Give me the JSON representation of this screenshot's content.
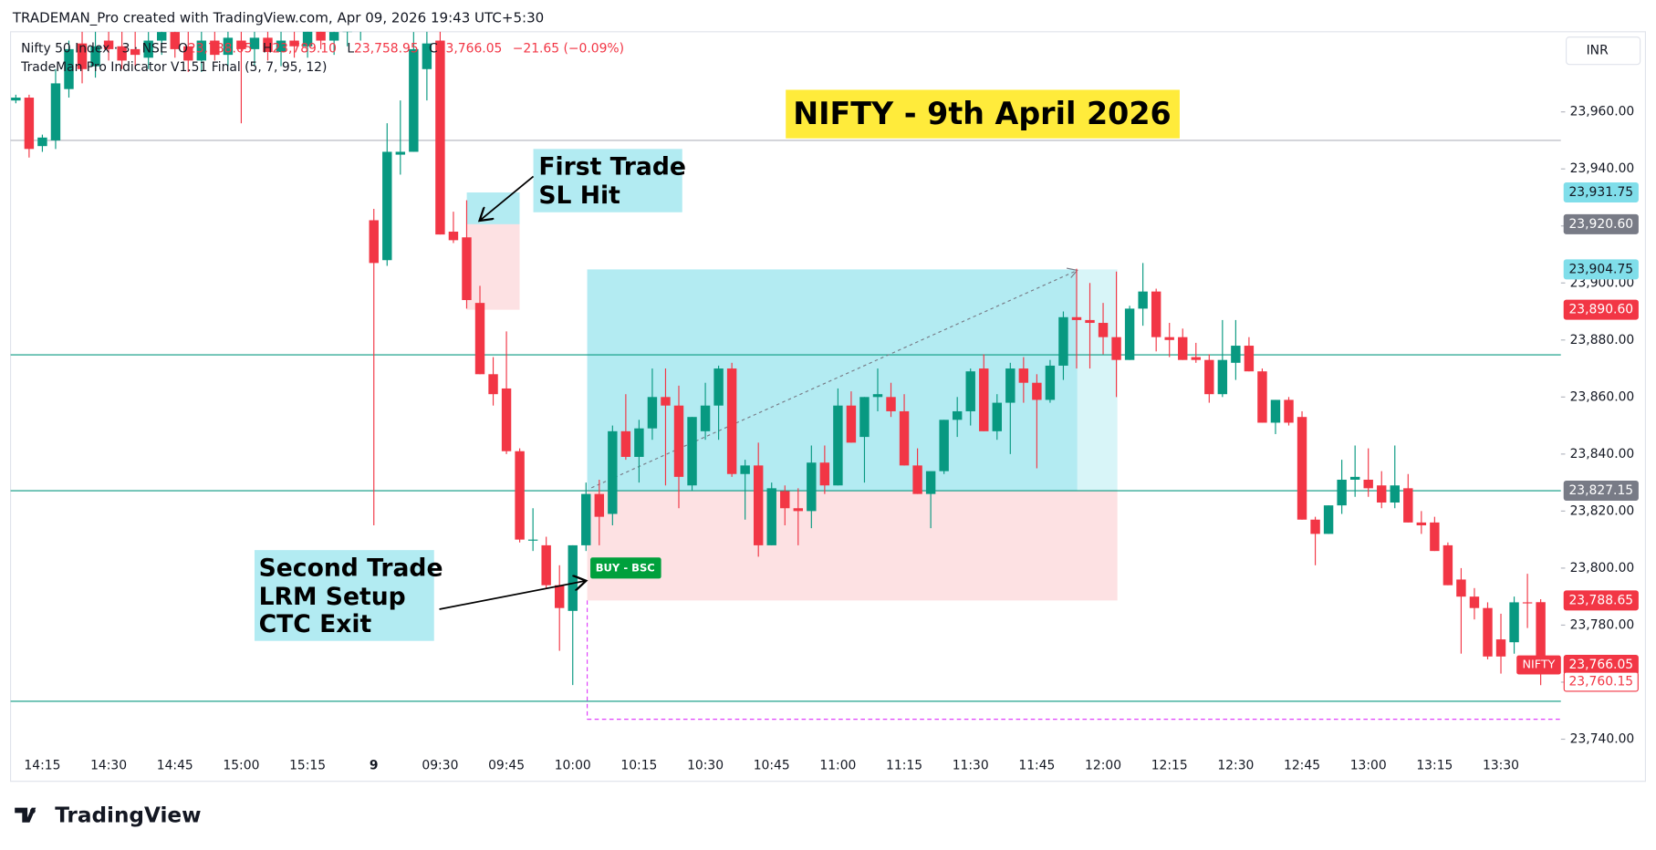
{
  "header": "TRADEMAN_Pro created with TradingView.com, Apr 09, 2026 19:43 UTC+5:30",
  "brand": "TradingView",
  "currency": "INR",
  "chart_data": {
    "type": "candlestick",
    "title": "NIFTY - 9th April 2026",
    "symbol": "Nifty 50 Index · 3 · NSE",
    "ohlc_legend": [
      {
        "key": "O",
        "label": "23,788.05"
      },
      {
        "key": "H",
        "label": "23,789.10"
      },
      {
        "key": "L",
        "label": "23,758.95"
      },
      {
        "key": "C",
        "label": "23,766.05"
      }
    ],
    "change_label": "−21.65 (−0.09%)",
    "indicator": "TradeMan Pro Indicator V1.51 Final (5, 7, 95, 12)",
    "up_color": "#089981",
    "down_color": "#f23645",
    "grid": false,
    "categories": [
      null,
      null,
      "14:15",
      null,
      null,
      null,
      null,
      "14:30",
      null,
      null,
      null,
      null,
      "14:45",
      null,
      null,
      null,
      null,
      "15:00",
      null,
      null,
      null,
      null,
      "15:15",
      null,
      null,
      null,
      null,
      "9",
      null,
      null,
      null,
      null,
      "09:30",
      null,
      null,
      null,
      null,
      "09:45",
      null,
      null,
      null,
      null,
      "10:00",
      null,
      null,
      null,
      null,
      "10:15",
      null,
      null,
      null,
      null,
      "10:30",
      null,
      null,
      null,
      null,
      "10:45",
      null,
      null,
      null,
      null,
      "11:00",
      null,
      null,
      null,
      null,
      "11:15",
      null,
      null,
      null,
      null,
      "11:30",
      null,
      null,
      null,
      null,
      "11:45",
      null,
      null,
      null,
      null,
      "12:00",
      null,
      null,
      null,
      null,
      "12:15",
      null,
      null,
      null,
      null,
      "12:30",
      null,
      null,
      null,
      null,
      "12:45",
      null,
      null,
      null,
      null,
      "13:00",
      null,
      null,
      null,
      null,
      "13:15",
      null,
      null,
      null,
      null,
      "13:30",
      null,
      null,
      null
    ],
    "open": [
      23964,
      23965,
      23948,
      23950,
      23968,
      23984,
      23976,
      23985,
      23983,
      23982,
      23979,
      23985,
      23988,
      23983,
      23978,
      23985,
      23980,
      23985,
      23982,
      23986,
      23981,
      23985,
      23983,
      23989,
      23985,
      23988,
      23991,
      23922,
      23908,
      23945,
      23946,
      23975,
      23985,
      23918,
      23916,
      23893,
      23868,
      23863,
      23841,
      23810,
      23808,
      23794,
      23785,
      23808,
      23826,
      23819,
      23848,
      23839,
      23849,
      23860,
      23857,
      23829,
      23848,
      23857,
      23870,
      23833,
      23836,
      23808,
      23827,
      23821,
      23820,
      23837,
      23829,
      23857,
      23846,
      23860,
      23860,
      23855,
      23836,
      23826,
      23834,
      23852,
      23855,
      23870,
      23848,
      23858,
      23870,
      23865,
      23859,
      23871,
      23888,
      23887,
      23886,
      23881,
      23873,
      23891,
      23897,
      23881,
      23881,
      23874,
      23873,
      23861,
      23872,
      23878,
      23869,
      23851,
      23859,
      23853,
      23817,
      23812,
      23822,
      23831,
      23831,
      23829,
      23823,
      23828,
      23816,
      23816,
      23808,
      23796,
      23790,
      23786,
      23775,
      23774,
      23788,
      23788.05
    ],
    "high": [
      23966,
      23966,
      23952,
      23975,
      23985,
      23990,
      23990,
      23993,
      23990,
      23992,
      23988,
      23995,
      23996,
      23990,
      23989,
      23992,
      23990,
      23995,
      23992,
      23995,
      23990,
      23994,
      23995,
      23997,
      23994,
      23996,
      23998,
      23926,
      23956,
      23964,
      23988,
      23990,
      23990,
      23925,
      23929,
      23899,
      23874,
      23883,
      23842,
      23821,
      23811,
      23801,
      23808,
      23830,
      23831,
      23850,
      23861,
      23852,
      23870,
      23870,
      23864,
      23853,
      23865,
      23871,
      23872,
      23838,
      23844,
      23830,
      23829,
      23828,
      23843,
      23843,
      23863,
      23862,
      23860,
      23870,
      23865,
      23861,
      23842,
      23832,
      23852,
      23860,
      23870,
      23875,
      23861,
      23872,
      23874,
      23868,
      23873,
      23890,
      23905,
      23900,
      23893,
      23904,
      23892,
      23907,
      23898,
      23886,
      23884,
      23879,
      23875,
      23887,
      23887,
      23881,
      23870,
      23859,
      23860,
      23855,
      23818,
      23822,
      23838,
      23843,
      23842,
      23834,
      23843,
      23833,
      23820,
      23818,
      23809,
      23800,
      23793,
      23788,
      23784,
      23790,
      23798,
      23789.1
    ],
    "low": [
      23963,
      23944,
      23946,
      23947,
      23965,
      23970,
      23972,
      23978,
      23975,
      23975,
      23975,
      23980,
      23979,
      23974,
      23974,
      23978,
      23976,
      23956,
      23976,
      23978,
      23976,
      23979,
      23979,
      23982,
      23980,
      23983,
      23985,
      23815,
      23906,
      23938,
      23946,
      23964,
      23917,
      23914,
      23891,
      23868,
      23857,
      23840,
      23809,
      23806,
      23793,
      23771,
      23759,
      23806,
      23808,
      23815,
      23838,
      23830,
      23845,
      23829,
      23821,
      23827,
      23845,
      23845,
      23832,
      23817,
      23804,
      23808,
      23815,
      23808,
      23814,
      23826,
      23829,
      23844,
      23830,
      23855,
      23853,
      23836,
      23826,
      23814,
      23833,
      23846,
      23850,
      23848,
      23845,
      23840,
      23858,
      23835,
      23858,
      23866,
      23870,
      23870,
      23875,
      23860,
      23873,
      23885,
      23876,
      23874,
      23873,
      23872,
      23858,
      23860,
      23866,
      23869,
      23851,
      23847,
      23850,
      23817,
      23801,
      23812,
      23819,
      23825,
      23825,
      23821,
      23821,
      23816,
      23812,
      23806,
      23794,
      23770,
      23782,
      23768,
      23763,
      23770,
      23779,
      23758.95
    ],
    "close": [
      23965,
      23947,
      23951,
      23970,
      23982,
      23975,
      23983,
      23982,
      23978,
      23980,
      23985,
      23988,
      23982,
      23978,
      23985,
      23980,
      23986,
      23982,
      23986,
      23981,
      23985,
      23983,
      23990,
      23985,
      23988,
      23991,
      23993,
      23907,
      23946,
      23946,
      23982,
      23984,
      23917,
      23915,
      23894,
      23868,
      23861,
      23841,
      23810,
      23810,
      23794,
      23786,
      23808,
      23826,
      23818,
      23848,
      23839,
      23849,
      23860,
      23857,
      23832,
      23853,
      23857,
      23870,
      23833,
      23836,
      23808,
      23828,
      23821,
      23820,
      23837,
      23829,
      23857,
      23844,
      23860,
      23861,
      23855,
      23836,
      23826,
      23834,
      23852,
      23855,
      23869,
      23848,
      23858,
      23870,
      23865,
      23859,
      23871,
      23888,
      23887,
      23886,
      23881,
      23873,
      23891,
      23897,
      23881,
      23880,
      23873,
      23873,
      23861,
      23873,
      23878,
      23869,
      23851,
      23859,
      23851,
      23817,
      23812,
      23822,
      23831,
      23832,
      23828,
      23823,
      23829,
      23816,
      23815,
      23806,
      23794,
      23790,
      23786,
      23769,
      23769,
      23788,
      23787.7,
      23766.05
    ],
    "ylim": [
      23735.6,
      23988.1
    ],
    "yticks": [
      {
        "value": 23740,
        "label": "23,740.00"
      },
      {
        "value": 23760,
        "label": "23,760.00"
      },
      {
        "value": 23780,
        "label": "23,780.00"
      },
      {
        "value": 23800,
        "label": "23,800.00"
      },
      {
        "value": 23820,
        "label": "23,820.00"
      },
      {
        "value": 23840,
        "label": "23,840.00"
      },
      {
        "value": 23860,
        "label": "23,860.00"
      },
      {
        "value": 23880,
        "label": "23,880.00"
      },
      {
        "value": 23900,
        "label": "23,900.00"
      },
      {
        "value": 23920,
        "label": "23,920.00"
      },
      {
        "value": 23940,
        "label": "23,940.00"
      },
      {
        "value": 23960,
        "label": "23,960.00"
      }
    ],
    "horizontal_lines": [
      {
        "value": 23950,
        "color": "#b2b5be"
      },
      {
        "value": 23874.8,
        "color": "#089981"
      },
      {
        "value": 23827.15,
        "color": "#089981"
      },
      {
        "value": 23753.3,
        "color": "#089981"
      }
    ],
    "dashed_level": {
      "value": 23747,
      "color": "#e040fb"
    },
    "positions": [
      {
        "target": 23931.75,
        "entry": 23920.6,
        "stop": 23890.6
      },
      {
        "target": 23904.75,
        "entry": 23827.15,
        "stop": 23788.65
      }
    ],
    "price_labels": [
      {
        "value": 23931.75,
        "label": "23,931.75",
        "color": "#80deea",
        "text_color": "#131722"
      },
      {
        "value": 23920.6,
        "label": "23,920.60",
        "color": "#787b86",
        "text_color": "#ffffff"
      },
      {
        "value": 23904.75,
        "label": "23,904.75",
        "color": "#80deea",
        "text_color": "#131722"
      },
      {
        "value": 23890.6,
        "label": "23,890.60",
        "color": "#f23645",
        "text_color": "#ffffff"
      },
      {
        "value": 23827.15,
        "label": "23,827.15",
        "color": "#787b86",
        "text_color": "#ffffff"
      },
      {
        "value": 23788.65,
        "label": "23,788.65",
        "color": "#f23645",
        "text_color": "#ffffff"
      },
      {
        "value": 23766.05,
        "label": "23,766.05",
        "color": "#f23645",
        "text_color": "#ffffff",
        "tag": "NIFTY"
      },
      {
        "value": 23760.15,
        "label": "23,760.15",
        "color": "#ffffff",
        "text_color": "#f23645"
      }
    ],
    "annotations": [
      {
        "lines": [
          "First Trade",
          "SL Hit"
        ]
      },
      {
        "lines": [
          "Second Trade",
          "LRM Setup",
          "CTC Exit"
        ]
      },
      {
        "lines": [
          "BUY - BSC"
        ]
      }
    ]
  }
}
